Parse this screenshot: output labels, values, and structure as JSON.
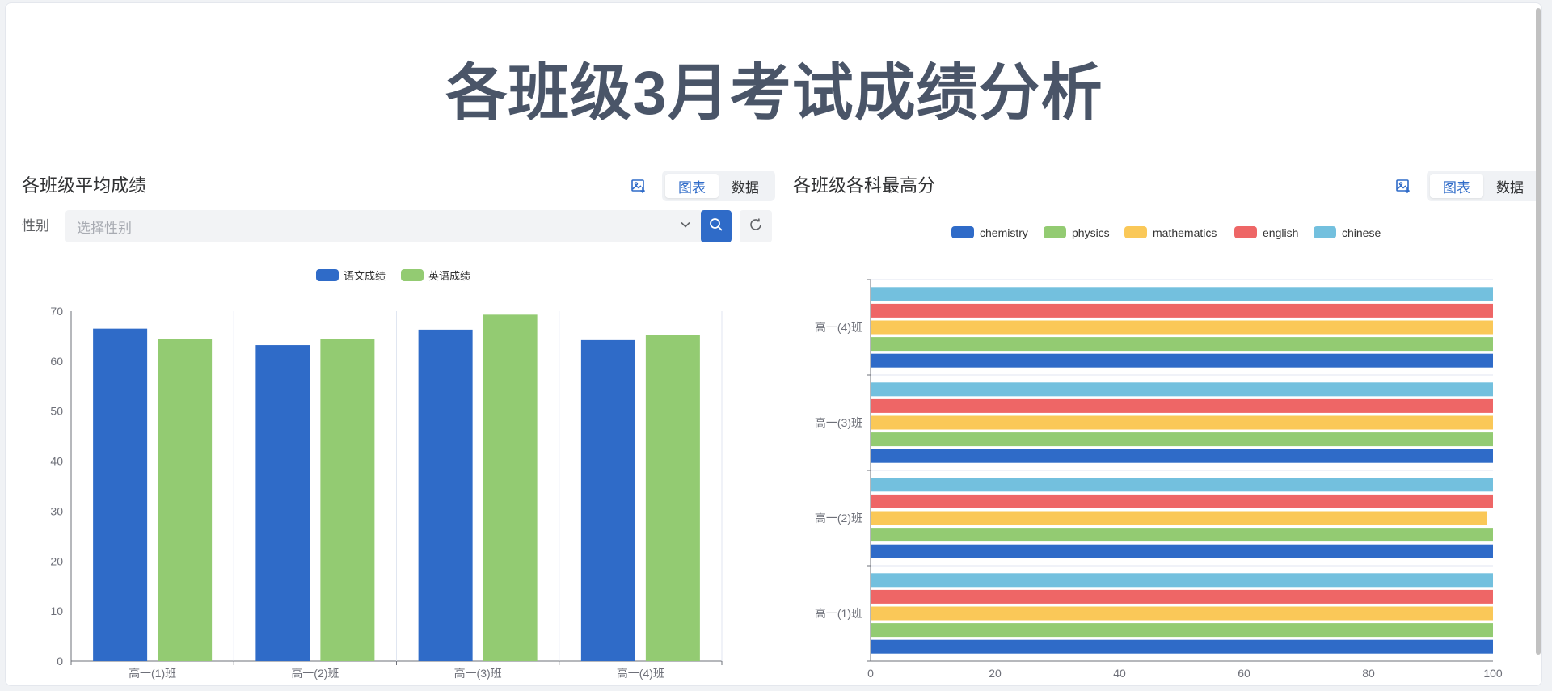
{
  "page": {
    "title": "各班级3月考试成绩分析"
  },
  "left_panel": {
    "title": "各班级平均成绩",
    "tabs": [
      {
        "label": "图表",
        "active": true
      },
      {
        "label": "数据",
        "active": false
      }
    ],
    "filter": {
      "label": "性别",
      "placeholder": "选择性别"
    }
  },
  "right_panel": {
    "title": "各班级各科最高分",
    "tabs": [
      {
        "label": "图表",
        "active": true
      },
      {
        "label": "数据",
        "active": false
      }
    ]
  },
  "icons": {
    "export": "image-download-icon",
    "dropdown": "chevron-down-icon",
    "search": "search-icon",
    "reset": "refresh-icon"
  },
  "colors": {
    "accent": "#2f6bc8"
  },
  "chart_data": [
    {
      "type": "bar",
      "categories": [
        "高一(1)班",
        "高一(2)班",
        "高一(3)班",
        "高一(4)班"
      ],
      "series": [
        {
          "name": "语文成绩",
          "color": "#2f6bc8",
          "values": [
            66.5,
            63.2,
            66.3,
            64.2
          ]
        },
        {
          "name": "英语成绩",
          "color": "#93cb72",
          "values": [
            64.5,
            64.4,
            69.3,
            65.3
          ]
        }
      ],
      "y_ticks": [
        "0",
        "10",
        "20",
        "30",
        "40",
        "50",
        "60",
        "70"
      ],
      "ylim": [
        0,
        70
      ],
      "legend_position": "top-center",
      "grid": "vertical category separators"
    },
    {
      "type": "bar",
      "orientation": "horizontal",
      "categories": [
        "高一(1)班",
        "高一(2)班",
        "高一(3)班",
        "高一(4)班"
      ],
      "series": [
        {
          "name": "chemistry",
          "color": "#2f6bc8",
          "values": [
            100,
            100,
            100,
            100
          ]
        },
        {
          "name": "physics",
          "color": "#93cb72",
          "values": [
            100,
            100,
            100,
            100
          ]
        },
        {
          "name": "mathematics",
          "color": "#fac858",
          "values": [
            100,
            99,
            100,
            100
          ]
        },
        {
          "name": "english",
          "color": "#ee6666",
          "values": [
            100,
            100,
            100,
            100
          ]
        },
        {
          "name": "chinese",
          "color": "#73c0de",
          "values": [
            100,
            100,
            100,
            100
          ]
        }
      ],
      "x_ticks": [
        "0",
        "20",
        "40",
        "60",
        "80",
        "100"
      ],
      "xlim": [
        0,
        100
      ],
      "legend_position": "top-center",
      "grid": "horizontal category separators"
    }
  ]
}
